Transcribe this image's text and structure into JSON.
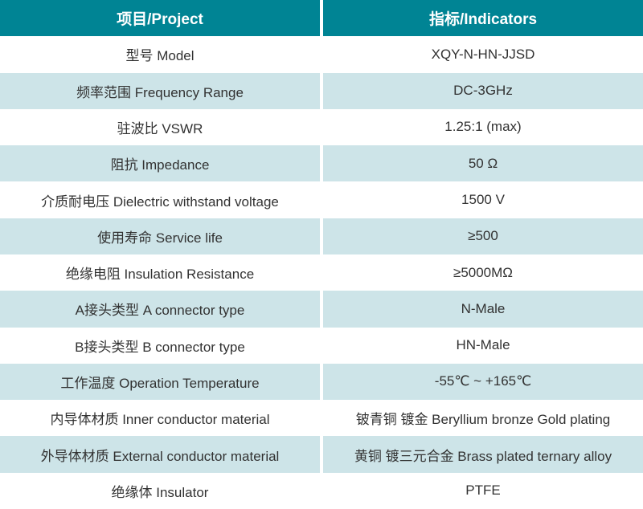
{
  "table": {
    "colors": {
      "header_bg": "#008494",
      "header_text": "#ffffff",
      "row_bg": "#ffffff",
      "alt_row_bg": "#cde4e8",
      "body_text": "#323232",
      "divider": "#ffffff"
    },
    "header": {
      "project": "项目/Project",
      "indicators": "指标/Indicators"
    },
    "rows": [
      {
        "project": "型号 Model",
        "indicator": "XQY-N-HN-JJSD"
      },
      {
        "project": "频率范围 Frequency Range",
        "indicator": "DC-3GHz"
      },
      {
        "project": "驻波比 VSWR",
        "indicator": "1.25:1 (max)"
      },
      {
        "project": "阻抗 Impedance",
        "indicator": "50 Ω"
      },
      {
        "project": "介质耐电压 Dielectric withstand voltage",
        "indicator": "1500 V"
      },
      {
        "project": "使用寿命 Service life",
        "indicator": "≥500"
      },
      {
        "project": "绝缘电阻 Insulation Resistance",
        "indicator": "≥5000MΩ"
      },
      {
        "project": "A接头类型 A connector type",
        "indicator": "N-Male"
      },
      {
        "project": "B接头类型 B connector type",
        "indicator": "HN-Male"
      },
      {
        "project": "工作温度 Operation Temperature",
        "indicator": "-55℃ ~ +165℃"
      },
      {
        "project": "内导体材质 Inner conductor material",
        "indicator": "铍青铜 镀金 Beryllium bronze Gold plating"
      },
      {
        "project": "外导体材质 External conductor material",
        "indicator": "黄铜 镀三元合金 Brass plated ternary alloy"
      },
      {
        "project": "绝缘体 Insulator",
        "indicator": "PTFE"
      }
    ]
  }
}
